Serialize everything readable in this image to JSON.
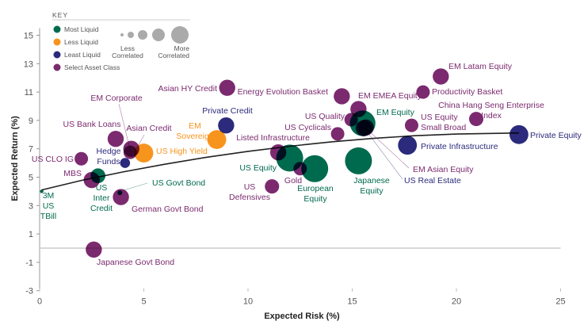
{
  "chart_data": {
    "type": "scatter",
    "subtype": "bubble",
    "xlabel": "Expected Risk (%)",
    "ylabel": "Expected Return (%)",
    "xlim": [
      0,
      25
    ],
    "ylim": [
      -3,
      15.5
    ],
    "xticks": [
      0,
      5,
      10,
      15,
      20,
      25
    ],
    "yticks": [
      -3,
      -1,
      1,
      3,
      5,
      7,
      9,
      11,
      13,
      15
    ],
    "grid": false,
    "zero_line": true,
    "legend": {
      "title": "KEY",
      "placement": "top-left",
      "categories": [
        {
          "name": "Most Liquid",
          "color": "#006a4e"
        },
        {
          "name": "Less Liquid",
          "color": "#f7941d"
        },
        {
          "name": "Least Liquid",
          "color": "#2b2a7c"
        },
        {
          "name": "Select Asset Class",
          "color": "#7b2a6f"
        }
      ],
      "size_low": "Less Correlated",
      "size_high": "More Correlated",
      "size_levels": [
        1,
        2,
        3,
        4,
        5
      ]
    },
    "curve": [
      [
        0.1,
        4.1
      ],
      [
        2,
        4.77
      ],
      [
        4,
        5.37
      ],
      [
        6,
        5.91
      ],
      [
        8,
        6.4
      ],
      [
        10,
        6.82
      ],
      [
        12,
        7.18
      ],
      [
        14,
        7.49
      ],
      [
        16,
        7.73
      ],
      [
        18,
        7.92
      ],
      [
        20,
        8.04
      ],
      [
        23,
        8.12
      ]
    ],
    "points": [
      {
        "name": "3M US TBill",
        "category": "Most Liquid",
        "x": 0.1,
        "y": 4.0,
        "size": 1.3
      },
      {
        "name": "US CLO IG",
        "category": "Select Asset Class",
        "x": 2.0,
        "y": 6.3,
        "size": 5
      },
      {
        "name": "MBS",
        "category": "Select Asset Class",
        "x": 2.5,
        "y": 4.8,
        "size": 6
      },
      {
        "name": "US Inter Credit",
        "category": "Most Liquid",
        "x": 2.8,
        "y": 5.1,
        "size": 5.5
      },
      {
        "name": "US Bank Loans",
        "category": "Select Asset Class",
        "x": 3.65,
        "y": 7.7,
        "size": 6
      },
      {
        "name": "Hedge Funds",
        "category": "Least Liquid",
        "x": 4.1,
        "y": 6.0,
        "size": 3.7
      },
      {
        "name": "Asian Credit",
        "category": "Select Asset Class",
        "x": 4.4,
        "y": 7.0,
        "size": 6
      },
      {
        "name": "EM Corporate",
        "category": "Select Asset Class",
        "x": 4.35,
        "y": 6.75,
        "size": 5
      },
      {
        "name": "US High Yield",
        "category": "Less Liquid",
        "x": 5.0,
        "y": 6.7,
        "size": 7
      },
      {
        "name": "US Govt Bond",
        "category": "Most Liquid",
        "x": 3.85,
        "y": 3.9,
        "size": 1.8
      },
      {
        "name": "German Govt Bond",
        "category": "Select Asset Class",
        "x": 3.9,
        "y": 3.6,
        "size": 6
      },
      {
        "name": "Japanese Govt Bond",
        "category": "Select Asset Class",
        "x": 2.6,
        "y": -0.1,
        "size": 6
      },
      {
        "name": "EM Sovereign",
        "category": "Less Liquid",
        "x": 8.5,
        "y": 7.65,
        "size": 7
      },
      {
        "name": "Private Credit",
        "category": "Least Liquid",
        "x": 8.95,
        "y": 8.65,
        "size": 6
      },
      {
        "name": "Asian HY Credit",
        "category": "Select Asset Class",
        "x": 9.0,
        "y": 11.3,
        "size": 6
      },
      {
        "name": "Listed Infrastructure",
        "category": "Select Asset Class",
        "x": 11.45,
        "y": 6.75,
        "size": 6
      },
      {
        "name": "US Equity",
        "category": "Most Liquid",
        "x": 12.0,
        "y": 6.35,
        "size": 10
      },
      {
        "name": "Gold",
        "category": "Select Asset Class",
        "x": 12.5,
        "y": 5.6,
        "size": 5
      },
      {
        "name": "European Equity",
        "category": "Most Liquid",
        "x": 13.2,
        "y": 5.6,
        "size": 10
      },
      {
        "name": "US Defensives",
        "category": "Select Asset Class",
        "x": 11.15,
        "y": 4.35,
        "size": 5.3
      },
      {
        "name": "Energy Evolution Basket",
        "category": "Select Asset Class",
        "x": 14.5,
        "y": 10.7,
        "size": 6
      },
      {
        "name": "US Cyclicals",
        "category": "Select Asset Class",
        "x": 14.3,
        "y": 8.05,
        "size": 5
      },
      {
        "name": "Japanese Equity",
        "category": "Most Liquid",
        "x": 15.3,
        "y": 6.15,
        "size": 10
      },
      {
        "name": "EM EMEA Equity",
        "category": "Select Asset Class",
        "x": 15.3,
        "y": 9.8,
        "size": 6
      },
      {
        "name": "US Quality",
        "category": "Select Asset Class",
        "x": 14.95,
        "y": 9.05,
        "size": 5
      },
      {
        "name": "EM Equity",
        "category": "Most Liquid",
        "x": 15.5,
        "y": 8.8,
        "size": 9.5
      },
      {
        "name": "EM Asian Equity",
        "category": "Select Asset Class",
        "x": 15.65,
        "y": 8.5,
        "size": 6
      },
      {
        "name": "US Real Estate",
        "category": "Least Liquid",
        "x": 15.55,
        "y": 8.45,
        "size": 6
      },
      {
        "name": "Private Infrastructure",
        "category": "Least Liquid",
        "x": 17.65,
        "y": 7.25,
        "size": 7
      },
      {
        "name": "US Equity Small Broad",
        "category": "Select Asset Class",
        "x": 17.85,
        "y": 8.65,
        "size": 5
      },
      {
        "name": "Productivity Basket",
        "category": "Select Asset Class",
        "x": 18.4,
        "y": 11.0,
        "size": 5
      },
      {
        "name": "EM Latam Equity",
        "category": "Select Asset Class",
        "x": 19.25,
        "y": 12.1,
        "size": 6
      },
      {
        "name": "China Hang Seng Enterprise Index",
        "category": "Select Asset Class",
        "x": 20.95,
        "y": 9.1,
        "size": 5.3
      },
      {
        "name": "Private Equity",
        "category": "Least Liquid",
        "x": 23.0,
        "y": 8.0,
        "size": 7
      }
    ],
    "label_lines": {
      "3M US TBill": [
        "3M",
        "US",
        "TBill"
      ],
      "US Inter Credit": [
        "US",
        "Inter",
        "Credit"
      ],
      "Hedge Funds": [
        "Hedge",
        "Funds"
      ],
      "EM Sovereign": [
        "EM",
        "Sovereign"
      ],
      "European Equity": [
        "European",
        "Equity"
      ],
      "US Defensives": [
        "US",
        "Defensives"
      ],
      "Japanese Equity": [
        "Japanese",
        "Equity"
      ],
      "US Equity Small Broad": [
        "US Equity",
        "Small Broad"
      ],
      "China Hang Seng Enterprise Index": [
        "China Hang Seng Enterprise",
        "Index"
      ]
    }
  }
}
